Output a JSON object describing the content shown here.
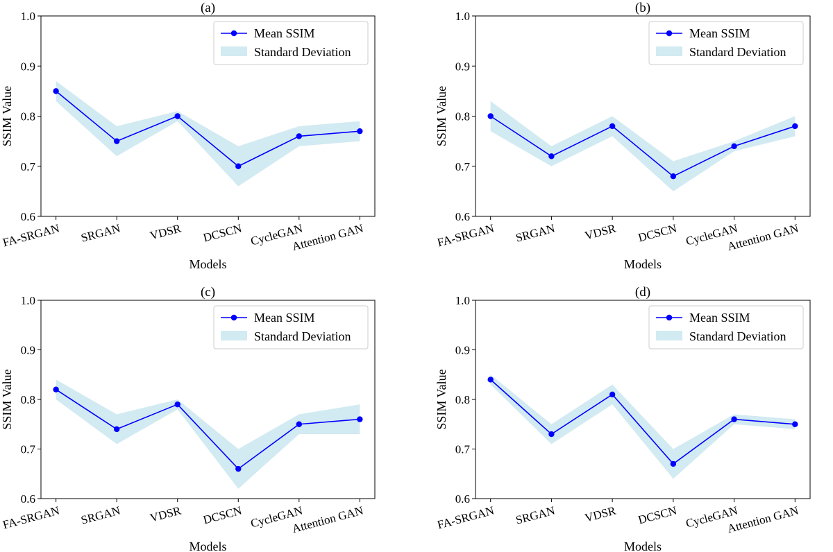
{
  "colors": {
    "line": "#0000ff",
    "band": "#add8e6",
    "legend_border": "#cccccc",
    "axis": "#000000"
  },
  "legend": {
    "mean_label": "Mean SSIM",
    "std_label": "Standard Deviation"
  },
  "chart_data": [
    {
      "type": "line",
      "title": "(a)",
      "xlabel": "Models",
      "ylabel": "SSIM Value",
      "ylim": [
        0.6,
        1.0
      ],
      "yticks": [
        "0.6",
        "0.7",
        "0.8",
        "0.9",
        "1.0"
      ],
      "categories": [
        "FA-SRGAN",
        "SRGAN",
        "VDSR",
        "DCSCN",
        "CycleGAN",
        "Attention GAN"
      ],
      "series": [
        {
          "name": "Mean SSIM",
          "values": [
            0.85,
            0.75,
            0.8,
            0.7,
            0.76,
            0.77
          ]
        }
      ],
      "band": {
        "name": "Standard Deviation",
        "lower": [
          0.83,
          0.72,
          0.79,
          0.66,
          0.74,
          0.75
        ],
        "upper": [
          0.87,
          0.78,
          0.81,
          0.74,
          0.78,
          0.79
        ]
      }
    },
    {
      "type": "line",
      "title": "(b)",
      "xlabel": "Models",
      "ylabel": "SSIM Value",
      "ylim": [
        0.6,
        1.0
      ],
      "yticks": [
        "0.6",
        "0.7",
        "0.8",
        "0.9",
        "1.0"
      ],
      "categories": [
        "FA-SRGAN",
        "SRGAN",
        "VDSR",
        "DCSCN",
        "CycleGAN",
        "Attention GAN"
      ],
      "series": [
        {
          "name": "Mean SSIM",
          "values": [
            0.8,
            0.72,
            0.78,
            0.68,
            0.74,
            0.78
          ]
        }
      ],
      "band": {
        "name": "Standard Deviation",
        "lower": [
          0.77,
          0.7,
          0.76,
          0.65,
          0.73,
          0.76
        ],
        "upper": [
          0.83,
          0.74,
          0.8,
          0.71,
          0.75,
          0.8
        ]
      }
    },
    {
      "type": "line",
      "title": "(c)",
      "xlabel": "Models",
      "ylabel": "SSIM Value",
      "ylim": [
        0.6,
        1.0
      ],
      "yticks": [
        "0.6",
        "0.7",
        "0.8",
        "0.9",
        "1.0"
      ],
      "categories": [
        "FA-SRGAN",
        "SRGAN",
        "VDSR",
        "DCSCN",
        "CycleGAN",
        "Attention GAN"
      ],
      "series": [
        {
          "name": "Mean SSIM",
          "values": [
            0.82,
            0.74,
            0.79,
            0.66,
            0.75,
            0.76
          ]
        }
      ],
      "band": {
        "name": "Standard Deviation",
        "lower": [
          0.8,
          0.71,
          0.78,
          0.62,
          0.73,
          0.73
        ],
        "upper": [
          0.84,
          0.77,
          0.8,
          0.7,
          0.77,
          0.79
        ]
      }
    },
    {
      "type": "line",
      "title": "(d)",
      "xlabel": "Models",
      "ylabel": "SSIM Value",
      "ylim": [
        0.6,
        1.0
      ],
      "yticks": [
        "0.6",
        "0.7",
        "0.8",
        "0.9",
        "1.0"
      ],
      "categories": [
        "FA-SRGAN",
        "SRGAN",
        "VDSR",
        "DCSCN",
        "CycleGAN",
        "Attention GAN"
      ],
      "series": [
        {
          "name": "Mean SSIM",
          "values": [
            0.84,
            0.73,
            0.81,
            0.67,
            0.76,
            0.75
          ]
        }
      ],
      "band": {
        "name": "Standard Deviation",
        "lower": [
          0.83,
          0.71,
          0.79,
          0.64,
          0.75,
          0.74
        ],
        "upper": [
          0.85,
          0.75,
          0.83,
          0.7,
          0.77,
          0.76
        ]
      }
    }
  ]
}
